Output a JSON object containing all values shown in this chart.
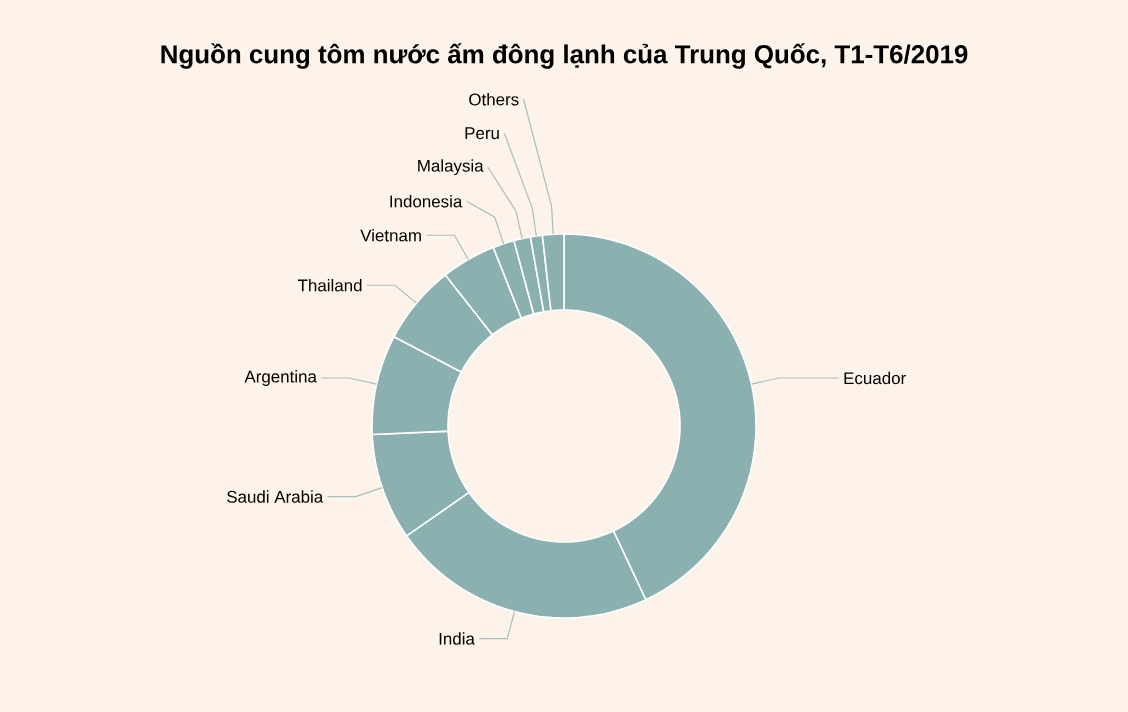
{
  "chart_data": {
    "type": "donut",
    "title": "Nguồn cung tôm nước ấm đông lạnh của Trung Quốc, T1-T6/2019",
    "categories": [
      "Ecuador",
      "India",
      "Saudi Arabia",
      "Argentina",
      "Thailand",
      "Vietnam",
      "Indonesia",
      "Malaysia",
      "Peru",
      "Others"
    ],
    "values": [
      43.0,
      22.3,
      9.0,
      8.4,
      6.7,
      4.6,
      1.8,
      1.4,
      1.0,
      1.8
    ],
    "colors": [
      "#8ab0af",
      "#8ab0af",
      "#8ab0af",
      "#8ab0af",
      "#8ab0af",
      "#8ab0af",
      "#8ab0af",
      "#8ab0af",
      "#8ab0af",
      "#8ab0af"
    ]
  }
}
